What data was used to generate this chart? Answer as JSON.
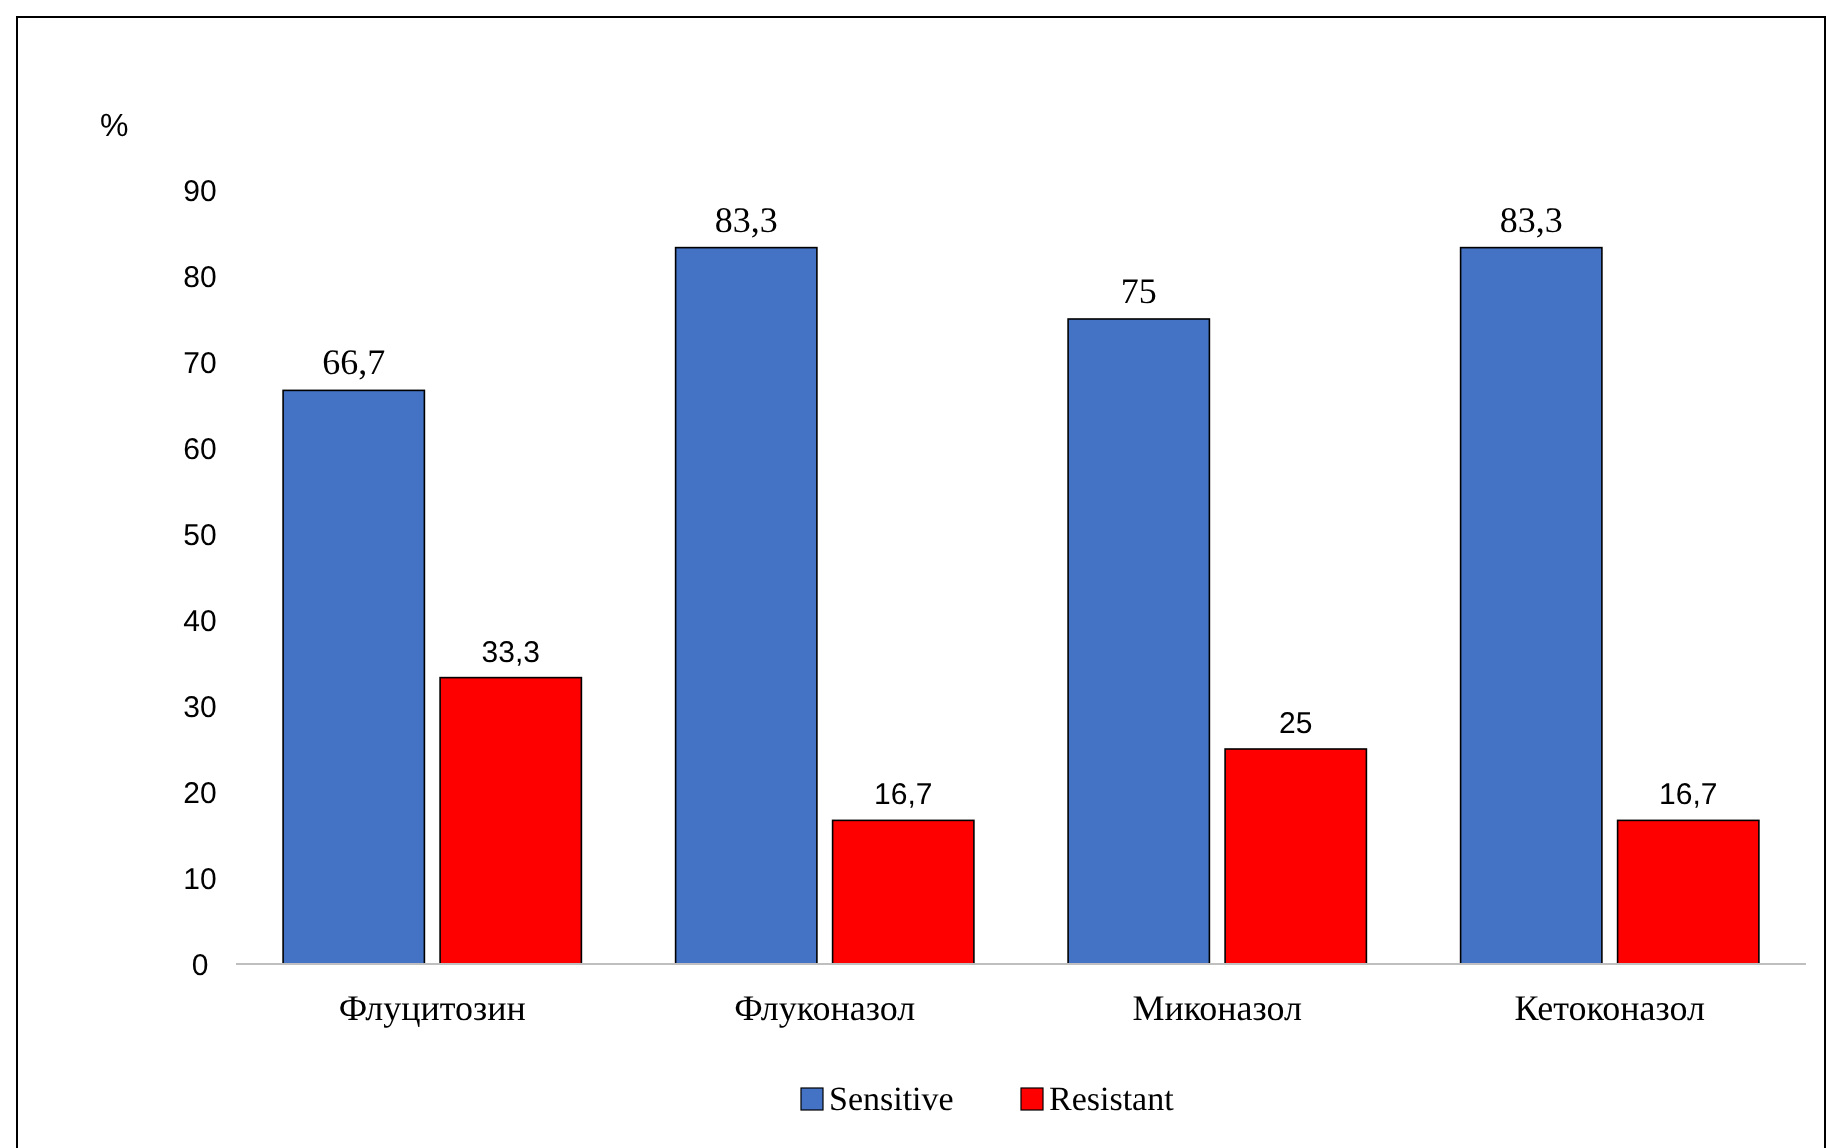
{
  "chart_data": {
    "type": "bar",
    "ylabel": "%",
    "categories": [
      "Флуцитозин",
      "Флуконазол",
      "Миконазол",
      "Кетоконазол"
    ],
    "series": [
      {
        "name": "Sensitive",
        "color": "#4472c4",
        "values": [
          66.7,
          83.3,
          75,
          83.3
        ],
        "value_labels": [
          "66,7",
          "83,3",
          "75",
          "83,3"
        ]
      },
      {
        "name": "Resistant",
        "color": "#ff0000",
        "values": [
          33.3,
          16.7,
          25,
          16.7
        ],
        "value_labels": [
          "33,3",
          "16,7",
          "25",
          "16,7"
        ]
      }
    ],
    "ylim": [
      0,
      90
    ],
    "yticks": [
      0,
      10,
      20,
      30,
      40,
      50,
      60,
      70,
      80,
      90
    ],
    "grid": false,
    "legend": "bottom"
  }
}
